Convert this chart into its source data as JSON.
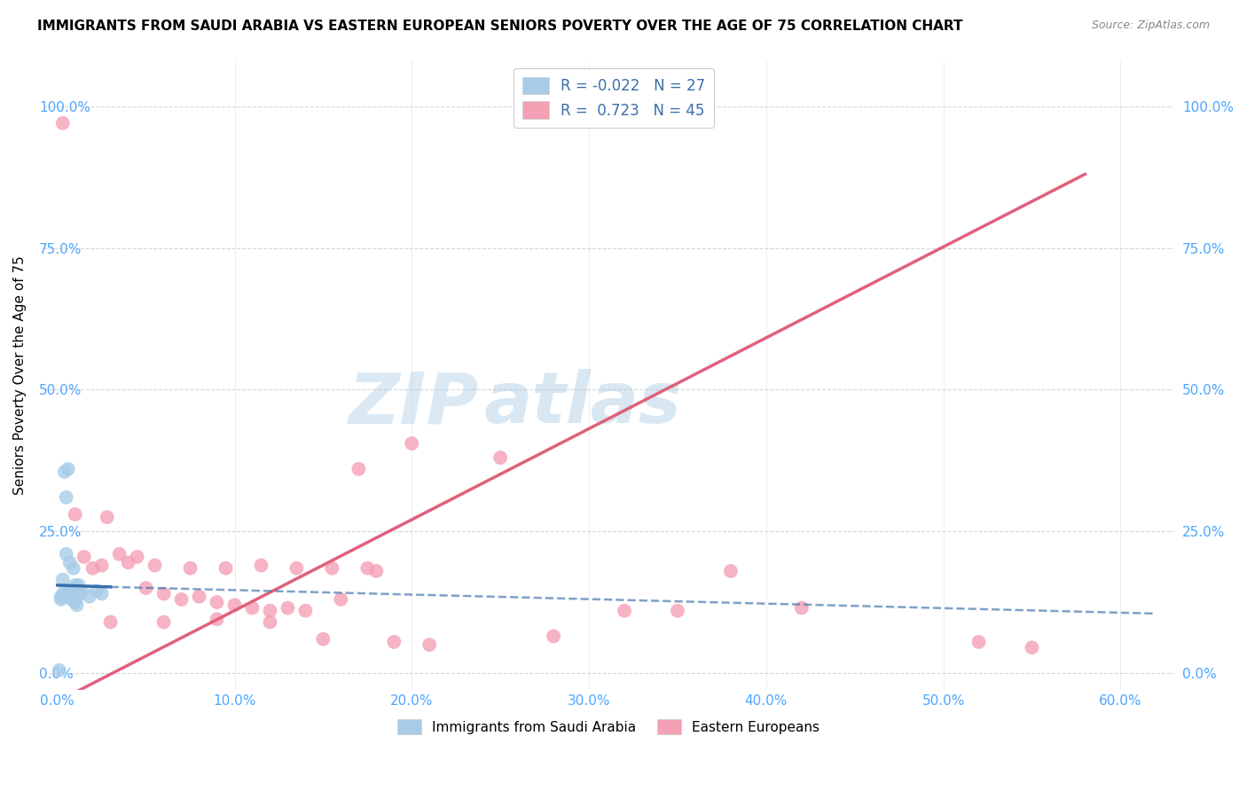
{
  "title": "IMMIGRANTS FROM SAUDI ARABIA VS EASTERN EUROPEAN SENIORS POVERTY OVER THE AGE OF 75 CORRELATION CHART",
  "source": "Source: ZipAtlas.com",
  "ylabel": "Seniors Poverty Over the Age of 75",
  "xlabel_ticks": [
    0.0,
    10.0,
    20.0,
    30.0,
    40.0,
    50.0,
    60.0
  ],
  "ylabel_ticks": [
    0.0,
    25.0,
    50.0,
    75.0,
    100.0
  ],
  "xlim": [
    -0.8,
    63
  ],
  "ylim": [
    -3,
    108
  ],
  "blue_R": -0.022,
  "blue_N": 27,
  "pink_R": 0.723,
  "pink_N": 45,
  "blue_label": "Immigrants from Saudi Arabia",
  "pink_label": "Eastern Europeans",
  "watermark_zip": "ZIP",
  "watermark_atlas": "atlas",
  "blue_scatter_x": [
    0.4,
    0.6,
    0.5,
    0.3,
    0.5,
    0.7,
    0.9,
    1.0,
    1.1,
    1.2,
    1.3,
    0.2,
    0.4,
    0.6,
    0.8,
    1.0,
    1.1,
    0.3,
    0.5,
    0.7,
    1.0,
    1.4,
    1.8,
    2.2,
    2.5,
    0.2,
    0.1
  ],
  "blue_scatter_y": [
    35.5,
    36.0,
    31.0,
    16.5,
    21.0,
    19.5,
    18.5,
    15.5,
    14.5,
    15.5,
    14.0,
    13.5,
    14.5,
    14.0,
    13.0,
    12.5,
    12.0,
    13.5,
    14.0,
    13.5,
    13.0,
    14.5,
    13.5,
    14.5,
    14.0,
    13.0,
    0.5
  ],
  "pink_scatter_x": [
    0.3,
    1.0,
    1.5,
    2.0,
    2.8,
    3.5,
    4.5,
    5.0,
    6.0,
    7.0,
    8.0,
    9.0,
    10.0,
    11.0,
    12.0,
    13.0,
    14.0,
    15.0,
    16.0,
    17.0,
    18.0,
    19.0,
    21.0,
    25.0,
    28.0,
    32.0,
    35.0,
    38.0,
    42.0,
    52.0,
    2.5,
    4.0,
    5.5,
    7.5,
    9.5,
    11.5,
    13.5,
    15.5,
    17.5,
    3.0,
    6.0,
    9.0,
    12.0,
    55.0,
    20.0
  ],
  "pink_scatter_y": [
    97.0,
    28.0,
    20.5,
    18.5,
    27.5,
    21.0,
    20.5,
    15.0,
    14.0,
    13.0,
    13.5,
    12.5,
    12.0,
    11.5,
    11.0,
    11.5,
    11.0,
    6.0,
    13.0,
    36.0,
    18.0,
    5.5,
    5.0,
    38.0,
    6.5,
    11.0,
    11.0,
    18.0,
    11.5,
    5.5,
    19.0,
    19.5,
    19.0,
    18.5,
    18.5,
    19.0,
    18.5,
    18.5,
    18.5,
    9.0,
    9.0,
    9.5,
    9.0,
    4.5,
    40.5
  ],
  "background_color": "#ffffff",
  "plot_bg_color": "#ffffff",
  "blue_color": "#a8cce8",
  "blue_line_color": "#3a6fad",
  "pink_color": "#f4a0b5",
  "pink_line_color": "#e0607a",
  "grid_color": "#cccccc",
  "axis_label_color": "#4da6ff",
  "title_fontsize": 11,
  "source_fontsize": 9,
  "pink_trend_x0": 0.0,
  "pink_trend_y0": -5.0,
  "pink_trend_x1": 58.0,
  "pink_trend_y1": 88.0,
  "blue_solid_x0": 0.0,
  "blue_solid_y0": 15.5,
  "blue_solid_x1": 3.0,
  "blue_solid_y1": 15.2,
  "blue_dash_x0": 3.0,
  "blue_dash_y0": 15.2,
  "blue_dash_x1": 62.0,
  "blue_dash_y1": 10.5
}
